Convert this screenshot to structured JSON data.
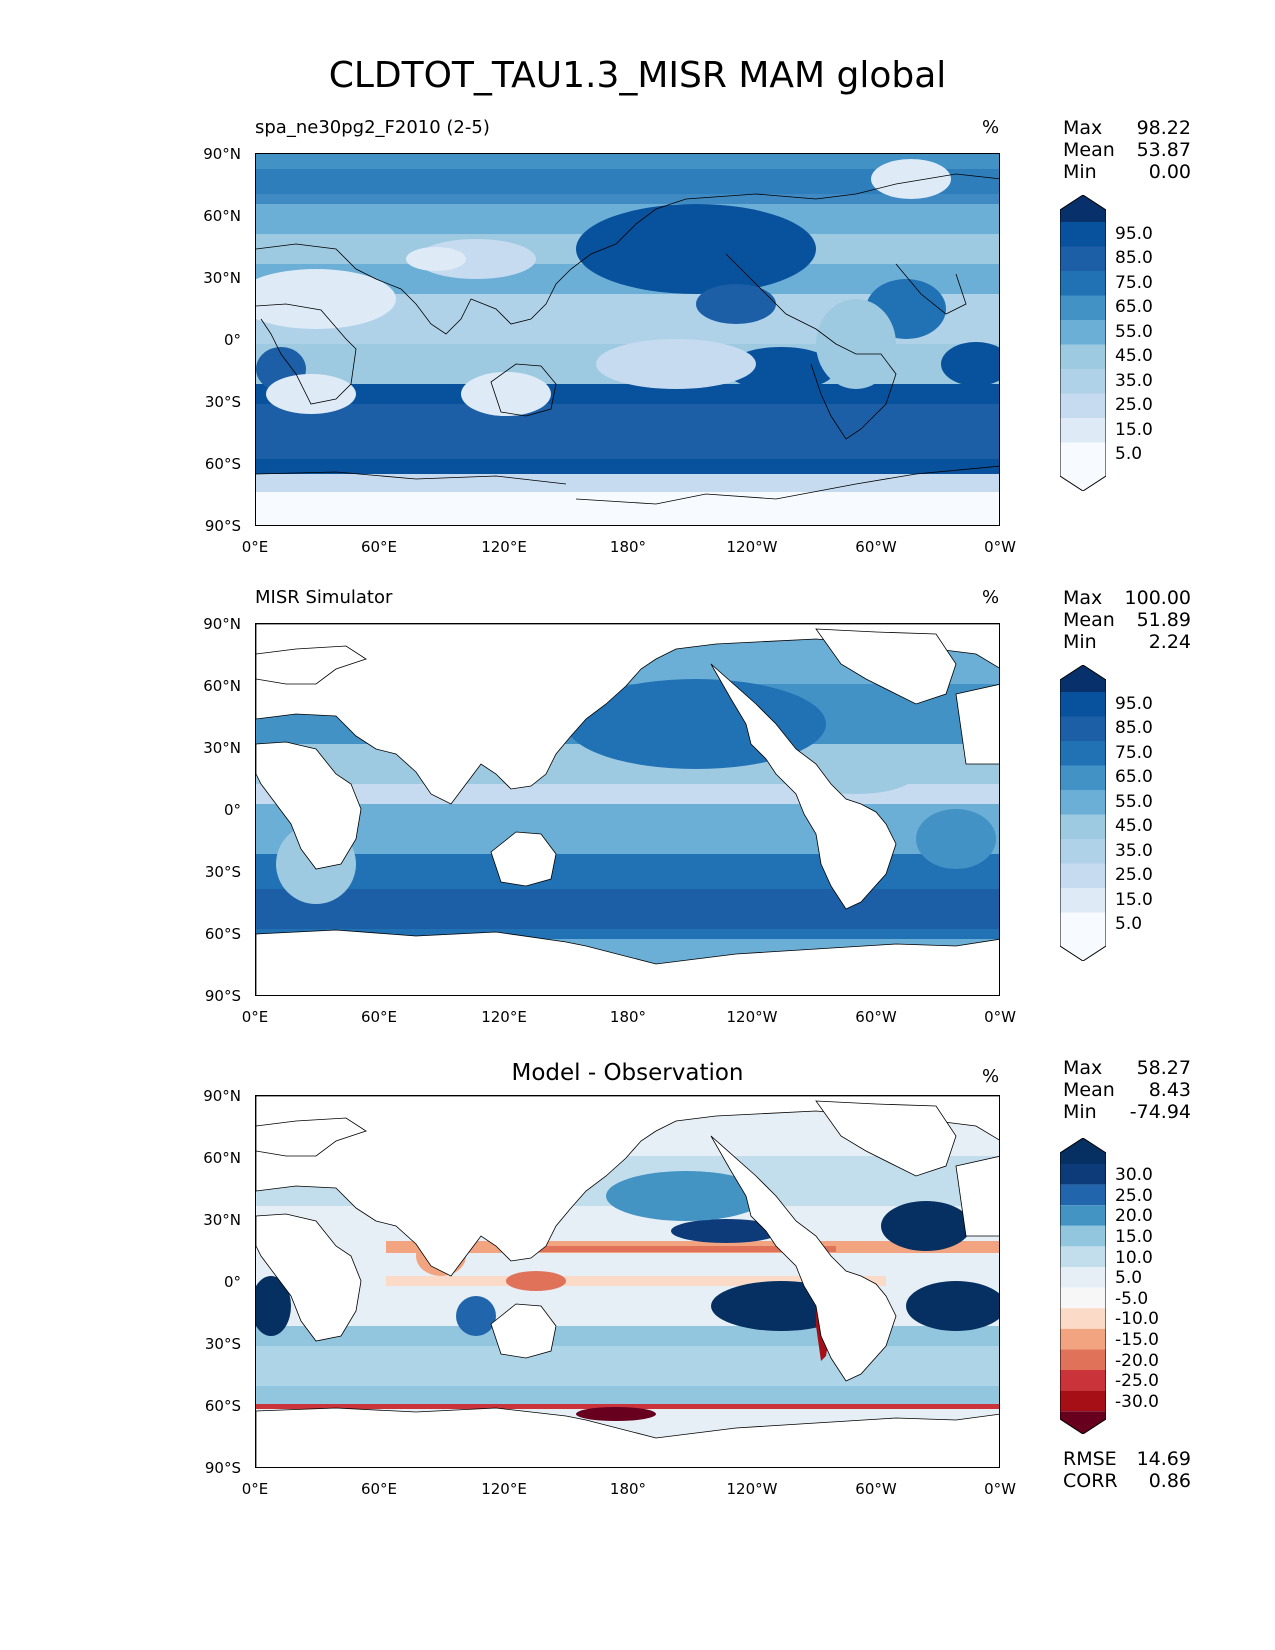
{
  "figure": {
    "title": "CLDTOT_TAU1.3_MISR MAM global"
  },
  "axes": {
    "lat_ticks": [
      "90°N",
      "60°N",
      "30°N",
      "0°",
      "30°S",
      "60°S",
      "90°S"
    ],
    "lon_ticks": [
      "0°E",
      "60°E",
      "120°E",
      "180°",
      "120°W",
      "60°W",
      "0°W"
    ]
  },
  "panels": [
    {
      "title": "spa_ne30pg2_F2010 (2-5)",
      "units": "%",
      "stats": [
        {
          "label": "Max",
          "value": "98.22"
        },
        {
          "label": "Mean",
          "value": "53.87"
        },
        {
          "label": "Min",
          "value": "0.00"
        }
      ],
      "colorbar_labels": [
        "95.0",
        "85.0",
        "75.0",
        "65.0",
        "55.0",
        "45.0",
        "35.0",
        "25.0",
        "15.0",
        "5.0"
      ]
    },
    {
      "title": "MISR Simulator",
      "units": "%",
      "stats": [
        {
          "label": "Max",
          "value": "100.00"
        },
        {
          "label": "Mean",
          "value": "51.89"
        },
        {
          "label": "Min",
          "value": "2.24"
        }
      ],
      "colorbar_labels": [
        "95.0",
        "85.0",
        "75.0",
        "65.0",
        "55.0",
        "45.0",
        "35.0",
        "25.0",
        "15.0",
        "5.0"
      ]
    },
    {
      "title": "Model - Observation",
      "units": "%",
      "stats": [
        {
          "label": "Max",
          "value": "58.27"
        },
        {
          "label": "Mean",
          "value": "8.43"
        },
        {
          "label": "Min",
          "value": "-74.94"
        }
      ],
      "colorbar_labels": [
        "30.0",
        "25.0",
        "20.0",
        "15.0",
        "10.0",
        "5.0",
        "-5.0",
        "-10.0",
        "-15.0",
        "-20.0",
        "-25.0",
        "-30.0"
      ],
      "metrics": [
        {
          "label": "RMSE",
          "value": "14.69"
        },
        {
          "label": "CORR",
          "value": "0.86"
        }
      ]
    }
  ],
  "colors": {
    "blues": [
      "#f7fbff",
      "#deebf7",
      "#c6dbef",
      "#b0d2e8",
      "#9ecae1",
      "#6baed6",
      "#4292c6",
      "#2171b5",
      "#1c5fa6",
      "#08519c",
      "#08306b"
    ],
    "diverging": [
      "#67001f",
      "#a50f15",
      "#cb333a",
      "#e0725a",
      "#f2a481",
      "#fbdbc8",
      "#f7f7f7",
      "#e6eff6",
      "#c2ddec",
      "#92c5de",
      "#4393c3",
      "#2166ac",
      "#0d3a78",
      "#053061"
    ]
  }
}
